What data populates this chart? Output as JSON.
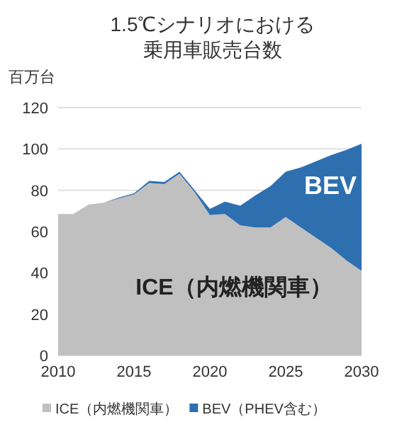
{
  "chart_data": {
    "type": "area",
    "stacked": true,
    "title": "1.5℃シナリオにおける乗用車販売台数",
    "ylabel": "百万台",
    "x": [
      2010,
      2011,
      2012,
      2013,
      2014,
      2015,
      2016,
      2017,
      2018,
      2019,
      2020,
      2021,
      2022,
      2023,
      2024,
      2025,
      2026,
      2027,
      2028,
      2029,
      2030
    ],
    "series": [
      {
        "name": "ICE（内燃機関車）",
        "color": "#c0c0c0",
        "values": [
          68.5,
          68.5,
          73,
          74,
          76,
          78,
          83.5,
          83,
          88,
          79,
          68,
          68.5,
          63,
          62,
          62,
          67,
          62,
          57,
          52,
          46,
          41
        ]
      },
      {
        "name": "BEV（PHEV含む）",
        "color": "#2e6fb0",
        "values": [
          0,
          0,
          0,
          0,
          0.5,
          0.5,
          1,
          1,
          1,
          1,
          3,
          6,
          9.5,
          15.5,
          20,
          22,
          29,
          37,
          45,
          53.5,
          61.5
        ]
      }
    ],
    "xlim": [
      2010,
      2030
    ],
    "xticks": [
      2010,
      2015,
      2020,
      2025,
      2030
    ],
    "ylim": [
      0,
      120
    ],
    "yticks": [
      0,
      20,
      40,
      60,
      80,
      100,
      120
    ],
    "grid": "y",
    "legend": "bottom",
    "annotations": [
      "BEV",
      "ICE（内燃機関車）"
    ]
  }
}
